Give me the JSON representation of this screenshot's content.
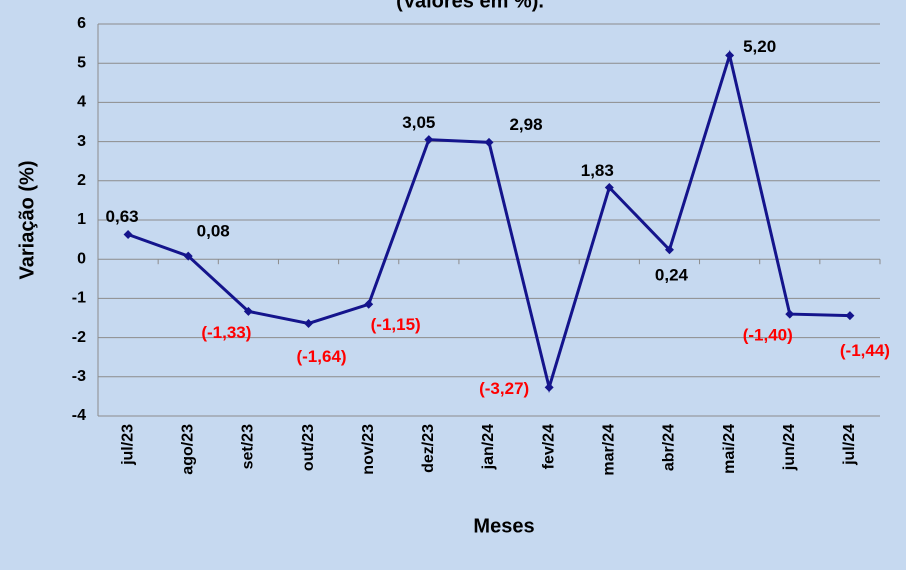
{
  "chart_data": {
    "type": "line",
    "title": "(Valores em %).",
    "x_label": "Meses",
    "y_label": "Variação (%)",
    "categories": [
      "jul/23",
      "ago/23",
      "set/23",
      "out/23",
      "nov/23",
      "dez/23",
      "jan/24",
      "fev/24",
      "mar/24",
      "abr/24",
      "mai/24",
      "jun/24",
      "jul/24"
    ],
    "values": [
      0.63,
      0.08,
      -1.33,
      -1.64,
      -1.15,
      3.05,
      2.98,
      -3.27,
      1.83,
      0.24,
      5.2,
      -1.4,
      -1.44
    ],
    "value_labels": [
      "0,63",
      "0,08",
      "(-1,33)",
      "(-1,64)",
      "(-1,15)",
      "3,05",
      "2,98",
      "(-3,27)",
      "1,83",
      "0,24",
      "5,20",
      "(-1,40)",
      "(-1,44)"
    ],
    "color": "#14148c",
    "ylim": [
      -4,
      6
    ],
    "yticks": [
      -4,
      -3,
      -2,
      -1,
      0,
      1,
      2,
      3,
      4,
      5,
      6
    ],
    "grid": true
  }
}
